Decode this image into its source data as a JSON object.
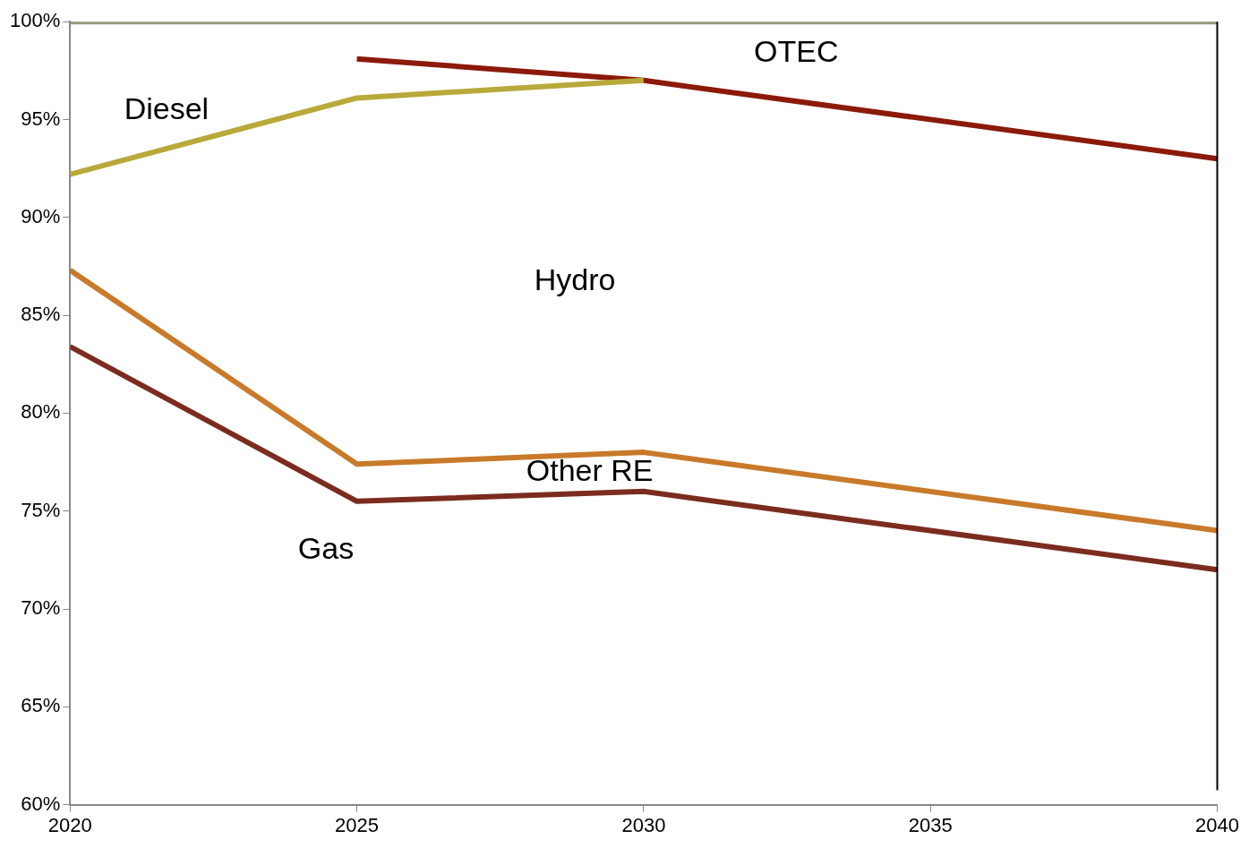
{
  "chart_data": {
    "type": "line",
    "xlim": [
      2020,
      2040
    ],
    "xticks": [
      2020,
      2025,
      2030,
      2035,
      2040
    ],
    "ylim": [
      60,
      100
    ],
    "yticks": [
      {
        "value": 60,
        "label": "60%"
      },
      {
        "value": 65,
        "label": "65%"
      },
      {
        "value": 70,
        "label": "70%"
      },
      {
        "value": 75,
        "label": "75%"
      },
      {
        "value": 80,
        "label": "80%"
      },
      {
        "value": 85,
        "label": "85%"
      },
      {
        "value": 90,
        "label": "90%"
      },
      {
        "value": 95,
        "label": "95%"
      },
      {
        "value": 100,
        "label": "100%"
      }
    ],
    "series": [
      {
        "color": "#7b2c1e",
        "x": [
          2020,
          2025,
          2030,
          2040
        ],
        "values": [
          83.4,
          75.5,
          76.0,
          72.0
        ]
      },
      {
        "color": "#c87a2a",
        "x": [
          2020,
          2025,
          2030,
          2040
        ],
        "values": [
          87.3,
          77.4,
          78.0,
          74.0
        ]
      },
      {
        "color": "#b8a93a",
        "x": [
          2020,
          2025,
          2030
        ],
        "values": [
          92.2,
          96.1,
          97.0
        ]
      },
      {
        "color": "#8b1a0a",
        "x": [
          2025,
          2030,
          2040
        ],
        "values": [
          98.1,
          97.0,
          93.0
        ]
      },
      {
        "color": "#8f9a7a",
        "x": [
          2020,
          2040
        ],
        "values": [
          100,
          100
        ]
      }
    ],
    "ref_lines": [
      {
        "axis": "x",
        "value": 2040,
        "color": "#000000"
      }
    ],
    "annotations": [
      "Diesel",
      "OTEC",
      "Hydro",
      "Other RE",
      "Gas"
    ],
    "grid": false,
    "legend": false,
    "marker": "none",
    "line_style": "solid"
  }
}
